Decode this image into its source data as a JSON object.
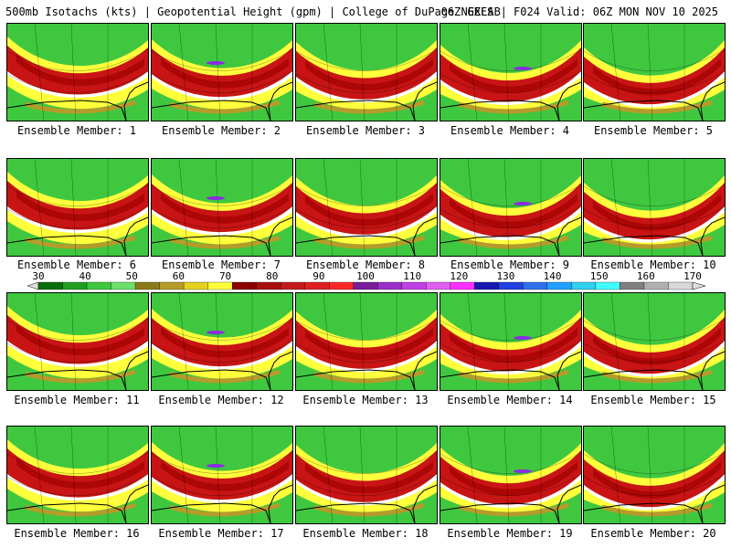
{
  "header": {
    "left": "500mb Isotachs (kts) | Geopotential Height (gpm) | College of DuPage NEXLAB",
    "right": "06Z GEFS | F024 Valid: 06Z MON NOV 10 2025"
  },
  "member_label_prefix": "Ensemble Member:",
  "members": [
    {
      "id": "1",
      "label": "Ensemble Member: 1"
    },
    {
      "id": "2",
      "label": "Ensemble Member: 2"
    },
    {
      "id": "3",
      "label": "Ensemble Member: 3"
    },
    {
      "id": "4",
      "label": "Ensemble Member: 4"
    },
    {
      "id": "5",
      "label": "Ensemble Member: 5"
    },
    {
      "id": "6",
      "label": "Ensemble Member: 6"
    },
    {
      "id": "7",
      "label": "Ensemble Member: 7"
    },
    {
      "id": "8",
      "label": "Ensemble Member: 8"
    },
    {
      "id": "9",
      "label": "Ensemble Member: 9"
    },
    {
      "id": "10",
      "label": "Ensemble Member: 10"
    },
    {
      "id": "11",
      "label": "Ensemble Member: 11"
    },
    {
      "id": "12",
      "label": "Ensemble Member: 12"
    },
    {
      "id": "13",
      "label": "Ensemble Member: 13"
    },
    {
      "id": "14",
      "label": "Ensemble Member: 14"
    },
    {
      "id": "15",
      "label": "Ensemble Member: 15"
    },
    {
      "id": "16",
      "label": "Ensemble Member: 16"
    },
    {
      "id": "17",
      "label": "Ensemble Member: 17"
    },
    {
      "id": "18",
      "label": "Ensemble Member: 18"
    },
    {
      "id": "19",
      "label": "Ensemble Member: 19"
    },
    {
      "id": "20",
      "label": "Ensemble Member: 20"
    }
  ],
  "colorbar": {
    "ticks": [
      "30",
      "40",
      "50",
      "60",
      "70",
      "80",
      "90",
      "100",
      "110",
      "120",
      "130",
      "140",
      "150",
      "160",
      "170"
    ],
    "colors": [
      "#0a6e0a",
      "#1fa01f",
      "#3fc83f",
      "#6be06b",
      "#8c7a1a",
      "#b59c2a",
      "#e6d21e",
      "#ffff3c",
      "#8b0000",
      "#a81010",
      "#c41c1c",
      "#e02020",
      "#ff2828",
      "#7a1d9a",
      "#9b2fc8",
      "#c040e6",
      "#e060f0",
      "#ff30ff",
      "#1818b0",
      "#2040e0",
      "#3070f0",
      "#20a0ff",
      "#30d0f0",
      "#40ffff",
      "#808080",
      "#b0b0b0",
      "#d8d8d8"
    ]
  },
  "map_colors": {
    "green": "#3fc83f",
    "yellow": "#ffff3c",
    "olive": "#b59c2a",
    "red": "#c81414",
    "darkred": "#a00000",
    "purple": "#8a2be2"
  }
}
